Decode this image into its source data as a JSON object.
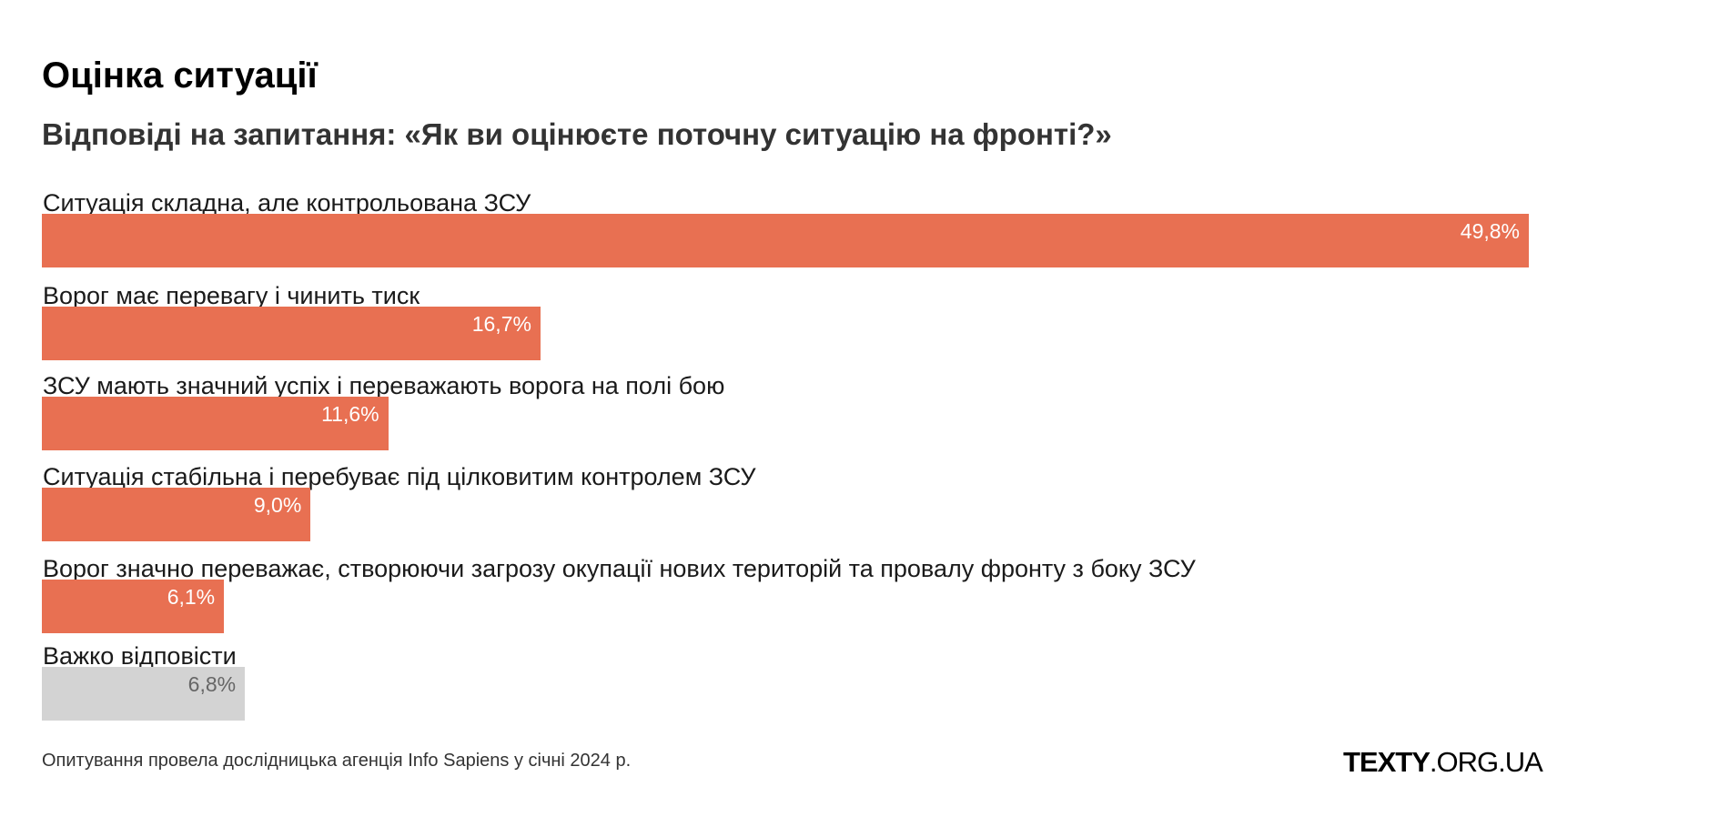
{
  "chart_data": {
    "type": "bar",
    "orientation": "horizontal",
    "title": "Оцінка ситуації",
    "subtitle": "Відповіді на запитання: «Як ви оцінюєте поточну ситуацію на фронті?»",
    "categories": [
      "Ситуація складна, але контрольована ЗСУ",
      "Ворог має перевагу і чинить тиск",
      "ЗСУ мають значний успіх і переважають ворога на полі бою",
      "Ситуація стабільна і перебуває під цілковитим контролем ЗСУ",
      "Ворог значно переважає, створюючи загрозу окупації нових територій та провалу фронту з боку ЗСУ",
      "Важко відповісти"
    ],
    "values": [
      49.8,
      16.7,
      11.6,
      9.0,
      6.1,
      6.8
    ],
    "value_labels": [
      "49,8%",
      "16,7%",
      "11,6%",
      "9,0%",
      "6,1%",
      "6,8%"
    ],
    "bar_colors": [
      "#e87052",
      "#e87052",
      "#e87052",
      "#e87052",
      "#e87052",
      "#d3d3d3"
    ],
    "value_label_colors": [
      "#ffffff",
      "#ffffff",
      "#ffffff",
      "#ffffff",
      "#ffffff",
      "#666666"
    ],
    "xlim": [
      0,
      49.8
    ],
    "grid": false,
    "legend": false
  },
  "footer": {
    "note": "Опитування провела дослідницька агенція Info Sapiens у січні 2024 р.",
    "brand_bold": "TEXTY",
    "brand_rest": ".ORG.UA"
  }
}
